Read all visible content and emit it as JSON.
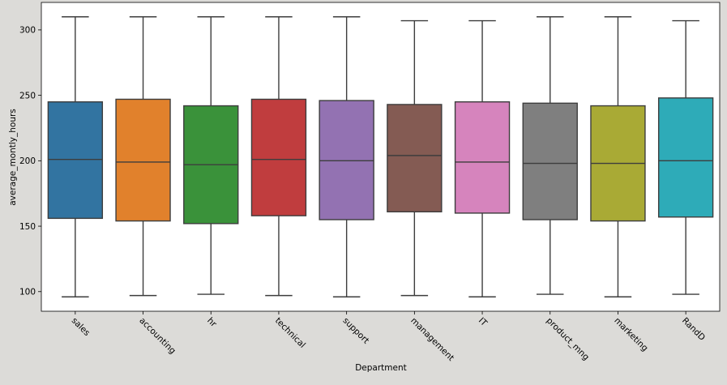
{
  "chart_data": {
    "type": "boxplot",
    "title": "",
    "xlabel": "Department",
    "ylabel": "average_montly_hours",
    "ylim": [
      85,
      321
    ],
    "yticks": [
      100,
      150,
      200,
      250,
      300
    ],
    "categories": [
      "sales",
      "accounting",
      "hr",
      "technical",
      "support",
      "management",
      "IT",
      "product_mng",
      "marketing",
      "RandD"
    ],
    "boxes": [
      {
        "name": "sales",
        "min": 96,
        "q1": 156,
        "median": 201,
        "q3": 245,
        "max": 310,
        "color": "#3274a1"
      },
      {
        "name": "accounting",
        "min": 97,
        "q1": 154,
        "median": 199,
        "q3": 247,
        "max": 310,
        "color": "#e1812c"
      },
      {
        "name": "hr",
        "min": 98,
        "q1": 152,
        "median": 197,
        "q3": 242,
        "max": 310,
        "color": "#3a923a"
      },
      {
        "name": "technical",
        "min": 97,
        "q1": 158,
        "median": 201,
        "q3": 247,
        "max": 310,
        "color": "#c03d3e"
      },
      {
        "name": "support",
        "min": 96,
        "q1": 155,
        "median": 200,
        "q3": 246,
        "max": 310,
        "color": "#9372b2"
      },
      {
        "name": "management",
        "min": 97,
        "q1": 161,
        "median": 204,
        "q3": 243,
        "max": 307,
        "color": "#845b53"
      },
      {
        "name": "IT",
        "min": 96,
        "q1": 160,
        "median": 199,
        "q3": 245,
        "max": 307,
        "color": "#d684bd"
      },
      {
        "name": "product_mng",
        "min": 98,
        "q1": 155,
        "median": 198,
        "q3": 244,
        "max": 310,
        "color": "#7f7f7f"
      },
      {
        "name": "marketing",
        "min": 96,
        "q1": 154,
        "median": 198,
        "q3": 242,
        "max": 310,
        "color": "#a9aa35"
      },
      {
        "name": "RandD",
        "min": 98,
        "q1": 157,
        "median": 200,
        "q3": 248,
        "max": 307,
        "color": "#2eabb8"
      }
    ]
  }
}
